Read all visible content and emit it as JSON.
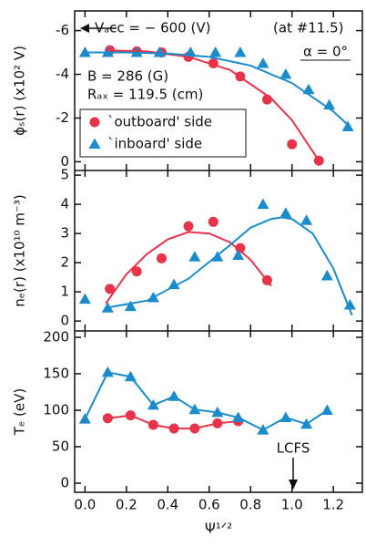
{
  "chart_data": [
    {
      "type": "scatter",
      "ylabel": "ϕₛ(r) (x10² V)",
      "annotations": [
        "Vₐcc = − 600 (V)",
        "(at #11.5)",
        "α = 0°",
        "B = 286 (G)",
        "Rₐₓ = 119.5 (cm)"
      ],
      "xlim": [
        -0.05,
        1.34
      ],
      "xticks": [
        0,
        0.2,
        0.4,
        0.6,
        0.8,
        1.0,
        1.2
      ],
      "ylim": [
        0.4,
        -6.9
      ],
      "yticks": [
        -6,
        -4,
        -2,
        0
      ],
      "legend": "lower-left",
      "series": [
        {
          "name": "`outboard' side",
          "color": "#e8334a",
          "marker": "circle",
          "x": [
            0.12,
            0.25,
            0.37,
            0.5,
            0.62,
            0.75,
            0.88,
            1.0,
            1.13
          ],
          "values": [
            -5.1,
            -5.05,
            -5.0,
            -4.8,
            -4.5,
            -3.9,
            -2.85,
            -0.8,
            -0.05
          ]
        },
        {
          "name": "`inboard' side",
          "color": "#1a8ccc",
          "marker": "triangle",
          "x": [
            0,
            0.11,
            0.25,
            0.36,
            0.51,
            0.63,
            0.75,
            0.86,
            0.97,
            1.08,
            1.18,
            1.27
          ],
          "values": [
            -5.0,
            -5.0,
            -5.0,
            -5.0,
            -5.0,
            -5.0,
            -5.0,
            -4.5,
            -4.0,
            -3.3,
            -2.6,
            -1.6
          ]
        },
        {
          "color": "#e8334a",
          "marker": "none",
          "x": [
            0.1,
            0.3,
            0.5,
            0.7,
            0.9,
            1.0,
            1.13
          ],
          "values": [
            -5.1,
            -5.05,
            -4.8,
            -4.2,
            -2.9,
            -1.9,
            -0.05
          ]
        },
        {
          "color": "#1a8ccc",
          "marker": "none",
          "x": [
            0,
            0.2,
            0.4,
            0.6,
            0.8,
            1.0,
            1.2,
            1.28
          ],
          "values": [
            -5.0,
            -5.0,
            -4.95,
            -4.8,
            -4.4,
            -3.6,
            -2.3,
            -1.6
          ]
        }
      ]
    },
    {
      "type": "scatter",
      "ylabel": "nₑ(r) (x10¹⁰ m⁻³)",
      "xlim": [
        -0.05,
        1.34
      ],
      "xticks": [
        0,
        0.2,
        0.4,
        0.6,
        0.8,
        1.0,
        1.2
      ],
      "ylim": [
        -0.34,
        5.16
      ],
      "yticks": [
        0,
        1,
        2,
        3,
        4,
        5
      ],
      "series": [
        {
          "color": "#e8334a",
          "marker": "circle",
          "x": [
            0.12,
            0.25,
            0.37,
            0.5,
            0.62,
            0.75,
            0.88
          ],
          "values": [
            1.1,
            1.7,
            2.15,
            3.25,
            3.4,
            2.5,
            1.4
          ]
        },
        {
          "color": "#1a8ccc",
          "marker": "triangle",
          "x": [
            0,
            0.11,
            0.22,
            0.33,
            0.43,
            0.53,
            0.64,
            0.74,
            0.86,
            0.97,
            1.07,
            1.17,
            1.28
          ],
          "values": [
            0.75,
            0.45,
            0.5,
            0.8,
            1.25,
            2.2,
            2.2,
            2.25,
            4.0,
            3.7,
            3.45,
            1.55,
            0.55
          ]
        },
        {
          "color": "#e8334a",
          "marker": "none",
          "x": [
            0.1,
            0.2,
            0.3,
            0.4,
            0.5,
            0.6,
            0.7,
            0.8,
            0.9
          ],
          "values": [
            0.6,
            1.6,
            2.3,
            2.8,
            3.05,
            3.0,
            2.7,
            2.1,
            1.2
          ]
        },
        {
          "color": "#1a8ccc",
          "marker": "none",
          "x": [
            0.1,
            0.3,
            0.5,
            0.7,
            0.8,
            0.9,
            0.95,
            1.0,
            1.1,
            1.2,
            1.29
          ],
          "values": [
            0.45,
            0.7,
            1.45,
            2.6,
            3.2,
            3.5,
            3.55,
            3.5,
            3.0,
            1.8,
            0.2
          ]
        }
      ]
    },
    {
      "type": "line",
      "ylabel": "Tₑ (eV)",
      "xlabel": "Ψ¹ᐟ²",
      "annotations": [
        "LCFS"
      ],
      "xlim": [
        -0.05,
        1.34
      ],
      "xticks": [
        {
          "value": 0,
          "label": "0.0"
        },
        {
          "value": 0.2,
          "label": "0.2"
        },
        {
          "value": 0.4,
          "label": "0.4"
        },
        {
          "value": 0.6,
          "label": "0.6"
        },
        {
          "value": 0.8,
          "label": "0.8"
        },
        {
          "value": 1.0,
          "label": "1.0"
        },
        {
          "value": 1.2,
          "label": "1.2"
        }
      ],
      "ylim": [
        -12.5,
        208.75
      ],
      "yticks": [
        0,
        50,
        100,
        150,
        200
      ],
      "series": [
        {
          "color": "#e8334a",
          "marker": "circle",
          "x": [
            0.11,
            0.22,
            0.33,
            0.43,
            0.53,
            0.64,
            0.74
          ],
          "values": [
            89,
            93,
            80,
            75,
            75,
            82,
            85
          ]
        },
        {
          "color": "#1a8ccc",
          "marker": "triangle",
          "x": [
            0,
            0.11,
            0.22,
            0.33,
            0.43,
            0.53,
            0.64,
            0.74,
            0.86,
            0.97,
            1.07,
            1.17
          ],
          "values": [
            88,
            152,
            146,
            107,
            119,
            101,
            97,
            90,
            73,
            90,
            81,
            100
          ]
        }
      ]
    }
  ]
}
